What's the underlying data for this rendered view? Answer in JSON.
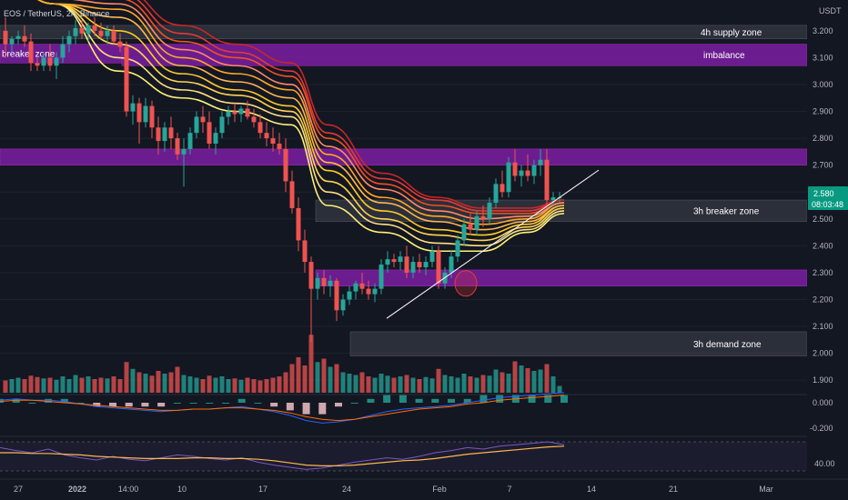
{
  "header": {
    "symbol_text": "EOS / TetherUS, 2h, Binance",
    "currency_label": "USDT"
  },
  "price_tag": {
    "price": "2.580",
    "countdown": "08:03:48"
  },
  "colors": {
    "background": "#131722",
    "up": "#26a69a",
    "down": "#ef5350",
    "zone_purple": "#7b1fa2",
    "zone_gray": "#363a45"
  },
  "chart_data": {
    "type": "candlestick",
    "y_axis": {
      "ticks": [
        "3.200",
        "3.100",
        "3.000",
        "2.900",
        "2.800",
        "2.700",
        "2.600",
        "2.500",
        "2.400",
        "2.300",
        "2.200",
        "2.100",
        "2.000",
        "1.900"
      ],
      "range": [
        1.86,
        3.24
      ]
    },
    "x_axis": {
      "ticks": [
        "27",
        "2022",
        "14:00",
        "10",
        "17",
        "24",
        "Feb",
        "7",
        "14",
        "21",
        "Mar"
      ]
    },
    "zones": [
      {
        "label": "4h supply zone",
        "low": 3.17,
        "high": 3.22,
        "color": "gray"
      },
      {
        "label": "imbalance",
        "low": 3.07,
        "high": 3.15,
        "color": "purple"
      },
      {
        "label": "breaker zone",
        "low": 3.08,
        "high": 3.15,
        "color": "purple_partial"
      },
      {
        "label": "",
        "low": 2.7,
        "high": 2.76,
        "color": "purple"
      },
      {
        "label": "3h breaker zone",
        "low": 2.49,
        "high": 2.57,
        "color": "gray"
      },
      {
        "label": "",
        "low": 2.25,
        "high": 2.31,
        "color": "purple"
      },
      {
        "label": "3h demand zone",
        "low": 1.99,
        "high": 2.08,
        "color": "gray"
      }
    ],
    "candles": [
      [
        3.2,
        3.25,
        3.1,
        3.15
      ],
      [
        3.15,
        3.18,
        3.12,
        3.17
      ],
      [
        3.17,
        3.2,
        3.15,
        3.18
      ],
      [
        3.18,
        3.22,
        3.14,
        3.16
      ],
      [
        3.16,
        3.19,
        3.05,
        3.08
      ],
      [
        3.08,
        3.1,
        3.05,
        3.07
      ],
      [
        3.07,
        3.12,
        3.05,
        3.1
      ],
      [
        3.1,
        3.15,
        3.05,
        3.07
      ],
      [
        3.07,
        3.12,
        3.02,
        3.1
      ],
      [
        3.1,
        3.18,
        3.08,
        3.15
      ],
      [
        3.15,
        3.2,
        3.12,
        3.18
      ],
      [
        3.18,
        3.24,
        3.15,
        3.21
      ],
      [
        3.21,
        3.24,
        3.17,
        3.19
      ],
      [
        3.19,
        3.23,
        3.16,
        3.22
      ],
      [
        3.22,
        3.25,
        3.18,
        3.2
      ],
      [
        3.2,
        3.23,
        3.17,
        3.18
      ],
      [
        3.18,
        3.22,
        3.15,
        3.2
      ],
      [
        3.2,
        3.22,
        3.15,
        3.16
      ],
      [
        3.16,
        3.19,
        3.12,
        3.14
      ],
      [
        3.14,
        3.16,
        2.88,
        2.9
      ],
      [
        2.9,
        2.96,
        2.85,
        2.93
      ],
      [
        2.93,
        2.95,
        2.78,
        2.86
      ],
      [
        2.86,
        2.95,
        2.84,
        2.92
      ],
      [
        2.92,
        2.94,
        2.8,
        2.84
      ],
      [
        2.84,
        2.88,
        2.74,
        2.79
      ],
      [
        2.79,
        2.86,
        2.75,
        2.84
      ],
      [
        2.84,
        2.88,
        2.76,
        2.8
      ],
      [
        2.8,
        2.82,
        2.72,
        2.74
      ],
      [
        2.74,
        2.8,
        2.62,
        2.76
      ],
      [
        2.76,
        2.84,
        2.74,
        2.82
      ],
      [
        2.82,
        2.9,
        2.8,
        2.88
      ],
      [
        2.88,
        2.92,
        2.82,
        2.86
      ],
      [
        2.86,
        2.9,
        2.76,
        2.78
      ],
      [
        2.78,
        2.84,
        2.74,
        2.82
      ],
      [
        2.82,
        2.9,
        2.8,
        2.88
      ],
      [
        2.88,
        2.92,
        2.85,
        2.9
      ],
      [
        2.9,
        2.93,
        2.86,
        2.89
      ],
      [
        2.89,
        2.92,
        2.86,
        2.91
      ],
      [
        2.91,
        2.94,
        2.87,
        2.88
      ],
      [
        2.88,
        2.91,
        2.84,
        2.86
      ],
      [
        2.86,
        2.89,
        2.8,
        2.82
      ],
      [
        2.82,
        2.86,
        2.77,
        2.8
      ],
      [
        2.8,
        2.84,
        2.75,
        2.78
      ],
      [
        2.78,
        2.82,
        2.74,
        2.76
      ],
      [
        2.76,
        2.8,
        2.6,
        2.64
      ],
      [
        2.64,
        2.68,
        2.52,
        2.54
      ],
      [
        2.54,
        2.58,
        2.38,
        2.42
      ],
      [
        2.42,
        2.46,
        2.3,
        2.34
      ],
      [
        2.34,
        2.36,
        2.04,
        2.24
      ],
      [
        2.24,
        2.3,
        2.2,
        2.28
      ],
      [
        2.28,
        2.31,
        2.22,
        2.25
      ],
      [
        2.25,
        2.29,
        2.21,
        2.27
      ],
      [
        2.27,
        2.28,
        2.12,
        2.16
      ],
      [
        2.16,
        2.22,
        2.14,
        2.2
      ],
      [
        2.2,
        2.25,
        2.18,
        2.23
      ],
      [
        2.23,
        2.27,
        2.2,
        2.26
      ],
      [
        2.26,
        2.3,
        2.22,
        2.24
      ],
      [
        2.24,
        2.27,
        2.2,
        2.22
      ],
      [
        2.22,
        2.26,
        2.19,
        2.24
      ],
      [
        2.24,
        2.35,
        2.22,
        2.33
      ],
      [
        2.33,
        2.38,
        2.3,
        2.35
      ],
      [
        2.35,
        2.37,
        2.32,
        2.34
      ],
      [
        2.34,
        2.38,
        2.31,
        2.36
      ],
      [
        2.36,
        2.4,
        2.28,
        2.3
      ],
      [
        2.3,
        2.36,
        2.28,
        2.34
      ],
      [
        2.34,
        2.37,
        2.3,
        2.32
      ],
      [
        2.32,
        2.36,
        2.29,
        2.34
      ],
      [
        2.34,
        2.4,
        2.32,
        2.38
      ],
      [
        2.38,
        2.4,
        2.24,
        2.26
      ],
      [
        2.26,
        2.32,
        2.24,
        2.3
      ],
      [
        2.3,
        2.38,
        2.28,
        2.36
      ],
      [
        2.36,
        2.44,
        2.34,
        2.42
      ],
      [
        2.42,
        2.5,
        2.4,
        2.48
      ],
      [
        2.48,
        2.52,
        2.44,
        2.46
      ],
      [
        2.46,
        2.53,
        2.44,
        2.51
      ],
      [
        2.51,
        2.55,
        2.47,
        2.5
      ],
      [
        2.5,
        2.58,
        2.48,
        2.56
      ],
      [
        2.56,
        2.65,
        2.54,
        2.63
      ],
      [
        2.63,
        2.68,
        2.58,
        2.6
      ],
      [
        2.6,
        2.73,
        2.58,
        2.71
      ],
      [
        2.71,
        2.76,
        2.64,
        2.66
      ],
      [
        2.66,
        2.7,
        2.62,
        2.68
      ],
      [
        2.68,
        2.74,
        2.64,
        2.66
      ],
      [
        2.66,
        2.72,
        2.63,
        2.7
      ],
      [
        2.7,
        2.76,
        2.66,
        2.72
      ],
      [
        2.72,
        2.76,
        2.55,
        2.57
      ],
      [
        2.57,
        2.6,
        2.55,
        2.58
      ],
      [
        2.58,
        2.6,
        2.56,
        2.58
      ]
    ],
    "ribbon_ma_levels": [
      [
        3.4,
        3.3,
        3.05,
        2.95,
        2.9,
        2.85,
        2.55,
        2.45,
        2.38,
        2.38,
        2.45,
        2.52
      ],
      [
        3.4,
        3.3,
        3.1,
        2.98,
        2.93,
        2.88,
        2.6,
        2.48,
        2.41,
        2.4,
        2.46,
        2.53
      ],
      [
        3.4,
        3.3,
        3.15,
        3.01,
        2.96,
        2.9,
        2.64,
        2.5,
        2.44,
        2.42,
        2.47,
        2.54
      ],
      [
        3.4,
        3.3,
        3.2,
        3.04,
        2.98,
        2.92,
        2.68,
        2.53,
        2.46,
        2.44,
        2.48,
        2.55
      ],
      [
        3.4,
        3.3,
        3.25,
        3.07,
        3.01,
        2.95,
        2.71,
        2.56,
        2.49,
        2.46,
        2.49,
        2.55
      ],
      [
        3.4,
        3.3,
        3.28,
        3.1,
        3.04,
        2.98,
        2.74,
        2.58,
        2.51,
        2.48,
        2.5,
        2.56
      ],
      [
        3.4,
        3.32,
        3.3,
        3.13,
        3.07,
        3.0,
        2.77,
        2.61,
        2.53,
        2.5,
        2.51,
        2.56
      ],
      [
        3.4,
        3.34,
        3.32,
        3.16,
        3.1,
        3.03,
        2.8,
        2.63,
        2.55,
        2.52,
        2.52,
        2.57
      ],
      [
        3.4,
        3.36,
        3.34,
        3.19,
        3.12,
        3.05,
        2.82,
        2.65,
        2.57,
        2.53,
        2.53,
        2.57
      ],
      [
        3.4,
        3.38,
        3.36,
        3.22,
        3.15,
        3.08,
        2.85,
        2.67,
        2.58,
        2.54,
        2.54,
        2.57
      ]
    ],
    "trendline": [
      [
        2.13,
        2.58
      ]
    ],
    "volume": [
      18,
      20,
      22,
      20,
      25,
      23,
      21,
      22,
      19,
      24,
      20,
      26,
      22,
      24,
      20,
      22,
      21,
      24,
      20,
      45,
      35,
      30,
      28,
      25,
      32,
      28,
      30,
      38,
      26,
      24,
      22,
      20,
      25,
      22,
      24,
      20,
      21,
      19,
      22,
      20,
      18,
      20,
      22,
      24,
      30,
      42,
      52,
      40,
      85,
      45,
      50,
      38,
      42,
      30,
      28,
      26,
      30,
      24,
      22,
      28,
      25,
      22,
      24,
      26,
      22,
      20,
      23,
      21,
      35,
      26,
      24,
      22,
      28,
      24,
      22,
      26,
      25,
      34,
      30,
      28,
      46,
      40,
      36,
      32,
      34,
      42,
      24,
      10
    ],
    "macd": [
      0.02,
      0.03,
      0.02,
      0.02,
      0.01,
      -0.01,
      -0.03,
      -0.04,
      -0.05,
      -0.06,
      -0.07,
      -0.06,
      -0.05,
      -0.05,
      -0.04,
      -0.03,
      -0.05,
      -0.07,
      -0.1,
      -0.14,
      -0.16,
      -0.15,
      -0.13,
      -0.1,
      -0.07,
      -0.05,
      -0.04,
      -0.03,
      -0.02,
      0.0,
      0.02,
      0.04,
      0.05,
      0.06,
      0.07,
      0.08
    ],
    "macd_signal": [
      0.01,
      0.02,
      0.02,
      0.01,
      0.0,
      -0.01,
      -0.02,
      -0.03,
      -0.04,
      -0.05,
      -0.06,
      -0.06,
      -0.05,
      -0.05,
      -0.04,
      -0.04,
      -0.05,
      -0.06,
      -0.08,
      -0.11,
      -0.13,
      -0.14,
      -0.13,
      -0.11,
      -0.09,
      -0.07,
      -0.05,
      -0.04,
      -0.03,
      -0.01,
      0.0,
      0.02,
      0.03,
      0.04,
      0.05,
      0.06
    ],
    "macd_ticks": [
      "0.000",
      "-0.200"
    ],
    "rsi": [
      62,
      58,
      55,
      60,
      52,
      48,
      45,
      50,
      46,
      44,
      48,
      52,
      50,
      47,
      45,
      48,
      42,
      38,
      35,
      32,
      34,
      38,
      42,
      45,
      48,
      46,
      50,
      55,
      58,
      62,
      60,
      64,
      66,
      68,
      70,
      66
    ],
    "rsi_ma": [
      55,
      55,
      54,
      54,
      53,
      52,
      50,
      49,
      48,
      47,
      47,
      47,
      48,
      48,
      47,
      47,
      46,
      44,
      41,
      38,
      37,
      37,
      38,
      40,
      42,
      44,
      45,
      47,
      50,
      53,
      55,
      57,
      59,
      61,
      63,
      64
    ],
    "rsi_ticks": [
      "40.00"
    ]
  }
}
